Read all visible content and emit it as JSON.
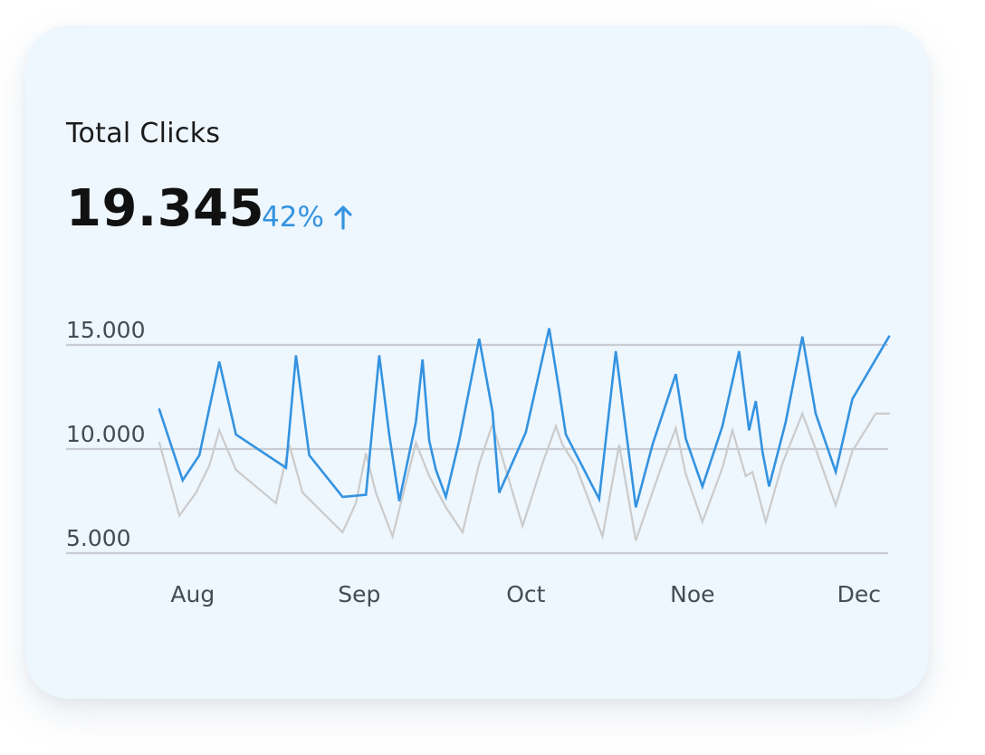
{
  "card": {
    "title": "Total Clicks",
    "value": "19.345",
    "change": "42%",
    "change_icon": "arrow-up-icon",
    "accent_color": "#3493e0",
    "background_color": "#eef6fe"
  },
  "chart_data": {
    "type": "line",
    "title": "",
    "xlabel": "",
    "ylabel": "",
    "ylim": [
      5000,
      15000
    ],
    "y_ticks": [
      {
        "value": 15000,
        "label": "15.000"
      },
      {
        "value": 10000,
        "label": "10.000"
      },
      {
        "value": 5000,
        "label": "5.000"
      }
    ],
    "x_ticks": [
      "Aug",
      "Sep",
      "Oct",
      "Noe",
      "Dec"
    ],
    "x_tick_positions": [
      0.5,
      3,
      5.5,
      8,
      10.5
    ],
    "xlim": [
      -0.25,
      11.25
    ],
    "grid": true,
    "legend": "none",
    "series": [
      {
        "color": "#3493e0",
        "x": [
          0,
          0.35,
          0.6,
          0.9,
          1.15,
          1.9,
          2.05,
          2.25,
          2.75,
          3.1,
          3.3,
          3.45,
          3.6,
          3.85,
          3.95,
          4.05,
          4.15,
          4.3,
          4.5,
          4.8,
          5.0,
          5.1,
          5.5,
          5.85,
          6.0,
          6.1,
          6.6,
          6.85,
          7.15,
          7.4,
          7.75,
          7.9,
          8.15,
          8.45,
          8.7,
          8.85,
          8.95,
          9.05,
          9.15,
          9.4,
          9.65,
          9.85,
          10.15,
          10.4,
          10.95
        ],
        "values": [
          11900,
          8500,
          9700,
          14200,
          10700,
          9100,
          14500,
          9700,
          7700,
          7800,
          14500,
          10700,
          7500,
          11300,
          14300,
          10400,
          9000,
          7700,
          10400,
          15300,
          11800,
          7900,
          10800,
          15800,
          12800,
          10700,
          7600,
          14700,
          7200,
          10200,
          13600,
          10500,
          8200,
          11100,
          14700,
          10900,
          12300,
          9900,
          8200,
          11300,
          15400,
          11700,
          8900,
          12400,
          15400
        ]
      },
      {
        "color": "#cbcbcb",
        "x": [
          0,
          0.3,
          0.55,
          0.75,
          0.9,
          1.15,
          1.75,
          1.95,
          2.15,
          2.75,
          2.95,
          3.1,
          3.25,
          3.5,
          3.85,
          4.05,
          4.3,
          4.55,
          4.8,
          5.0,
          5.45,
          5.75,
          5.95,
          6.05,
          6.25,
          6.65,
          6.9,
          7.15,
          7.55,
          7.75,
          7.9,
          8.15,
          8.45,
          8.6,
          8.8,
          8.9,
          9.1,
          9.35,
          9.65,
          9.85,
          10.15,
          10.4,
          10.75,
          10.95
        ],
        "values": [
          10300,
          6800,
          7900,
          9200,
          10900,
          9000,
          7400,
          10200,
          7900,
          6000,
          7400,
          9800,
          7900,
          5800,
          10300,
          8700,
          7200,
          6000,
          9300,
          11200,
          6300,
          9300,
          11100,
          10200,
          9200,
          5800,
          10200,
          5600,
          9300,
          11000,
          8800,
          6500,
          9100,
          10900,
          8700,
          8900,
          6500,
          9300,
          11700,
          10000,
          7300,
          9900,
          11700,
          11700
        ]
      }
    ]
  }
}
